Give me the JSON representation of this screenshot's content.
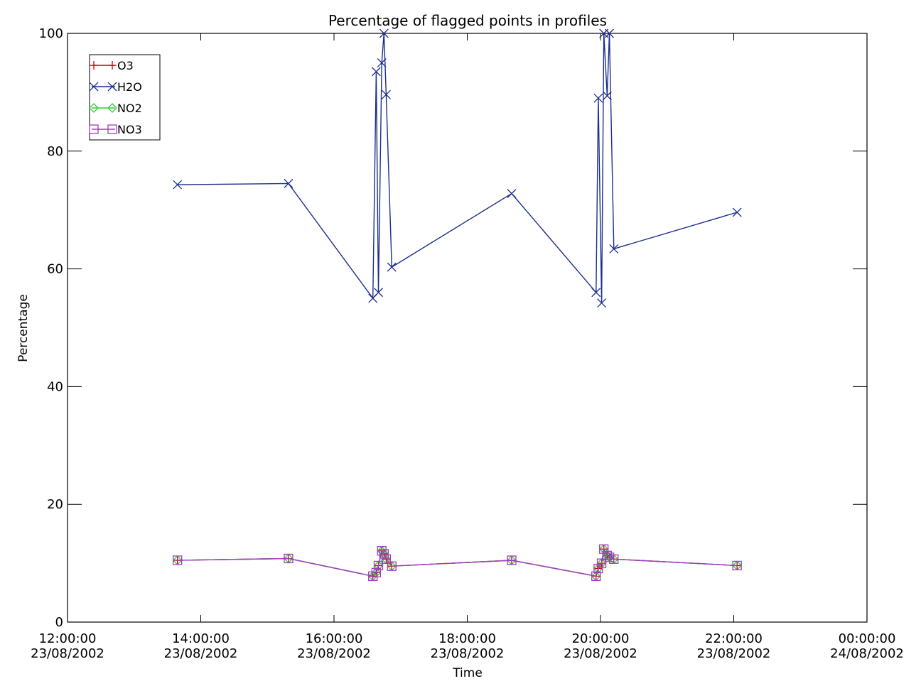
{
  "chart_data": {
    "type": "line",
    "title": "Percentage of flagged points in profiles",
    "xlabel": "Time",
    "ylabel": "Percentage",
    "xlim": [
      "2002-08-23 12:00",
      "2002-08-24 00:00"
    ],
    "ylim": [
      0,
      100
    ],
    "grid": false,
    "legend_position": "top-left",
    "x_ticks": [
      {
        "time": "2002-08-23 12:00",
        "line1": "12:00:00",
        "line2": "23/08/2002"
      },
      {
        "time": "2002-08-23 14:00",
        "line1": "14:00:00",
        "line2": "23/08/2002"
      },
      {
        "time": "2002-08-23 16:00",
        "line1": "16:00:00",
        "line2": "23/08/2002"
      },
      {
        "time": "2002-08-23 18:00",
        "line1": "18:00:00",
        "line2": "23/08/2002"
      },
      {
        "time": "2002-08-23 20:00",
        "line1": "20:00:00",
        "line2": "23/08/2002"
      },
      {
        "time": "2002-08-23 22:00",
        "line1": "22:00:00",
        "line2": "23/08/2002"
      },
      {
        "time": "2002-08-24 00:00",
        "line1": "00:00:00",
        "line2": "24/08/2002"
      }
    ],
    "y_ticks": [
      0,
      20,
      40,
      60,
      80,
      100
    ],
    "series": [
      {
        "name": "O3",
        "color": "#cc0000",
        "marker": "plus",
        "x": [
          "2002-08-23 13:39",
          "2002-08-23 15:19",
          "2002-08-23 16:35",
          "2002-08-23 16:38",
          "2002-08-23 16:40",
          "2002-08-23 16:43",
          "2002-08-23 16:45",
          "2002-08-23 16:47",
          "2002-08-23 16:52",
          "2002-08-23 18:40",
          "2002-08-23 19:56",
          "2002-08-23 19:58",
          "2002-08-23 20:01",
          "2002-08-23 20:03",
          "2002-08-23 20:06",
          "2002-08-23 20:08",
          "2002-08-23 20:12",
          "2002-08-23 22:03"
        ],
        "y": [
          10.5,
          10.8,
          7.8,
          8.4,
          9.6,
          12.1,
          11.6,
          10.7,
          9.5,
          10.5,
          7.8,
          9.1,
          10.0,
          12.4,
          11.3,
          11.0,
          10.7,
          9.6
        ]
      },
      {
        "name": "H2O",
        "color": "#1c2f8c",
        "marker": "x",
        "x": [
          "2002-08-23 13:39",
          "2002-08-23 15:19",
          "2002-08-23 16:35",
          "2002-08-23 16:38",
          "2002-08-23 16:40",
          "2002-08-23 16:43",
          "2002-08-23 16:45",
          "2002-08-23 16:47",
          "2002-08-23 16:52",
          "2002-08-23 18:40",
          "2002-08-23 19:56",
          "2002-08-23 19:58",
          "2002-08-23 20:01",
          "2002-08-23 20:03",
          "2002-08-23 20:06",
          "2002-08-23 20:08",
          "2002-08-23 20:12",
          "2002-08-23 22:03"
        ],
        "y": [
          74.3,
          74.5,
          55.0,
          93.5,
          56.0,
          95.0,
          100.0,
          89.6,
          60.3,
          72.8,
          56.0,
          89.0,
          54.2,
          100.0,
          89.4,
          100.0,
          63.4,
          69.6
        ]
      },
      {
        "name": "NO2",
        "color": "#33cc33",
        "marker": "diamond",
        "x": [
          "2002-08-23 13:39",
          "2002-08-23 15:19",
          "2002-08-23 16:35",
          "2002-08-23 16:38",
          "2002-08-23 16:40",
          "2002-08-23 16:43",
          "2002-08-23 16:45",
          "2002-08-23 16:47",
          "2002-08-23 16:52",
          "2002-08-23 18:40",
          "2002-08-23 19:56",
          "2002-08-23 19:58",
          "2002-08-23 20:01",
          "2002-08-23 20:03",
          "2002-08-23 20:06",
          "2002-08-23 20:08",
          "2002-08-23 20:12",
          "2002-08-23 22:03"
        ],
        "y": [
          10.5,
          10.8,
          7.8,
          8.4,
          9.6,
          12.1,
          11.6,
          10.7,
          9.5,
          10.5,
          7.8,
          9.1,
          10.0,
          12.4,
          11.3,
          11.0,
          10.7,
          9.6
        ]
      },
      {
        "name": "NO3",
        "color": "#a23bc4",
        "marker": "square",
        "x": [
          "2002-08-23 13:39",
          "2002-08-23 15:19",
          "2002-08-23 16:35",
          "2002-08-23 16:38",
          "2002-08-23 16:40",
          "2002-08-23 16:43",
          "2002-08-23 16:45",
          "2002-08-23 16:47",
          "2002-08-23 16:52",
          "2002-08-23 18:40",
          "2002-08-23 19:56",
          "2002-08-23 19:58",
          "2002-08-23 20:01",
          "2002-08-23 20:03",
          "2002-08-23 20:06",
          "2002-08-23 20:08",
          "2002-08-23 20:12",
          "2002-08-23 22:03"
        ],
        "y": [
          10.5,
          10.8,
          7.8,
          8.4,
          9.6,
          12.1,
          11.6,
          10.7,
          9.5,
          10.5,
          7.8,
          9.1,
          10.0,
          12.4,
          11.3,
          11.0,
          10.7,
          9.6
        ]
      }
    ]
  }
}
